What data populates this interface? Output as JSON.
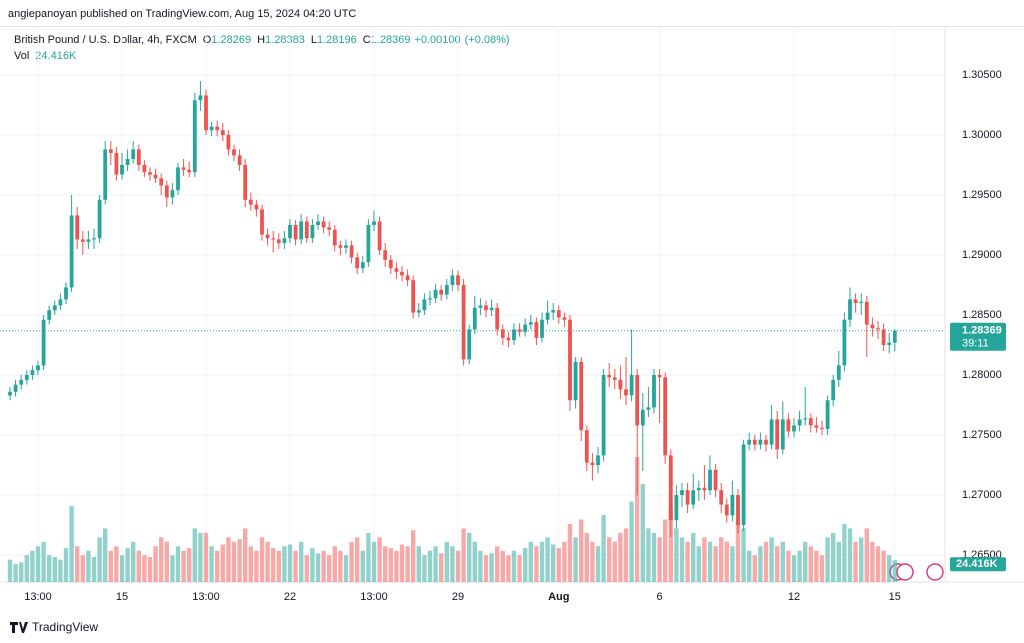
{
  "header": "angiepanoyan published on TradingView.com, Aug 15, 2024 04:20 UTC",
  "footer": "TradingView",
  "chart_data": {
    "type": "candlestick",
    "symbol": "British Pound / U.S. Dollar, 4h, FXCM",
    "ohlc_letters": [
      "O",
      "H",
      "L",
      "C"
    ],
    "change": {
      "value": 0.001,
      "label": "+0.00100"
    },
    "change_pct": {
      "value": 0.08,
      "label": "(+0.08%)"
    },
    "volume_title": "Vol",
    "last_volume_label": "24.416K",
    "countdown": "39:11",
    "up_color": "#26a69a",
    "down_color": "#ef5350",
    "grid": true,
    "ylim": [
      1.26275,
      1.30875
    ],
    "yticks": [
      {
        "value": 1.265,
        "label": "1.26500"
      },
      {
        "value": 1.27,
        "label": "1.27000"
      },
      {
        "value": 1.275,
        "label": "1.27500"
      },
      {
        "value": 1.28,
        "label": "1.28000"
      },
      {
        "value": 1.285,
        "label": "1.28500"
      },
      {
        "value": 1.29,
        "label": "1.29000"
      },
      {
        "value": 1.295,
        "label": "1.29500"
      },
      {
        "value": 1.3,
        "label": "1.30000"
      },
      {
        "value": 1.305,
        "label": "1.30500"
      }
    ],
    "xticks": [
      {
        "value": 5,
        "label": "13:00"
      },
      {
        "value": 20,
        "label": "15"
      },
      {
        "value": 35,
        "label": "13:00"
      },
      {
        "value": 50,
        "label": "22"
      },
      {
        "value": 65,
        "label": "13:00"
      },
      {
        "value": 80,
        "label": "29"
      },
      {
        "value": 98,
        "label": "Aug"
      },
      {
        "value": 116,
        "label": "6"
      },
      {
        "value": 140,
        "label": "12"
      },
      {
        "value": 158,
        "label": "15"
      }
    ],
    "ohlc": [
      [
        1.2783,
        1.279,
        1.2779,
        1.2786
      ],
      [
        1.2786,
        1.2796,
        1.2782,
        1.2792
      ],
      [
        1.2792,
        1.28,
        1.2788,
        1.2796
      ],
      [
        1.2796,
        1.2804,
        1.2792,
        1.28
      ],
      [
        1.28,
        1.2808,
        1.2796,
        1.2804
      ],
      [
        1.2804,
        1.2812,
        1.28,
        1.2808
      ],
      [
        1.2808,
        1.285,
        1.2804,
        1.2846
      ],
      [
        1.2846,
        1.2858,
        1.2842,
        1.2854
      ],
      [
        1.2854,
        1.2862,
        1.285,
        1.2858
      ],
      [
        1.2858,
        1.2868,
        1.2854,
        1.2863
      ],
      [
        1.2863,
        1.2877,
        1.2859,
        1.2873
      ],
      [
        1.2873,
        1.295,
        1.2869,
        1.2933
      ],
      [
        1.2933,
        1.294,
        1.2905,
        1.2913
      ],
      [
        1.2913,
        1.292,
        1.29,
        1.2911
      ],
      [
        1.2911,
        1.292,
        1.2905,
        1.2913
      ],
      [
        1.2913,
        1.2922,
        1.2905,
        1.2914
      ],
      [
        1.2914,
        1.295,
        1.291,
        1.2946
      ],
      [
        1.2946,
        1.2995,
        1.2942,
        1.2988
      ],
      [
        1.2988,
        1.2995,
        1.2975,
        1.2985
      ],
      [
        1.2985,
        1.299,
        1.2962,
        1.2967
      ],
      [
        1.2967,
        1.2985,
        1.2963,
        1.2975
      ],
      [
        1.2975,
        1.2988,
        1.297,
        1.298
      ],
      [
        1.298,
        1.2995,
        1.2976,
        1.2988
      ],
      [
        1.2988,
        1.2992,
        1.297,
        1.2975
      ],
      [
        1.2975,
        1.2979,
        1.2965,
        1.2969
      ],
      [
        1.2969,
        1.2973,
        1.2962,
        1.2967
      ],
      [
        1.2967,
        1.2972,
        1.296,
        1.2964
      ],
      [
        1.2964,
        1.2968,
        1.295,
        1.2958
      ],
      [
        1.2958,
        1.2962,
        1.294,
        1.2948
      ],
      [
        1.2948,
        1.296,
        1.2942,
        1.2954
      ],
      [
        1.2954,
        1.2977,
        1.295,
        1.2973
      ],
      [
        1.2973,
        1.298,
        1.2966,
        1.2971
      ],
      [
        1.2971,
        1.2978,
        1.2965,
        1.2969
      ],
      [
        1.2969,
        1.3035,
        1.2965,
        1.3029
      ],
      [
        1.3029,
        1.3045,
        1.302,
        1.3033
      ],
      [
        1.3033,
        1.3038,
        1.3,
        1.3004
      ],
      [
        1.3004,
        1.3011,
        1.2999,
        1.3007
      ],
      [
        1.3007,
        1.3012,
        1.2999,
        1.3004
      ],
      [
        1.3004,
        1.301,
        1.2995,
        1.3
      ],
      [
        1.3,
        1.3004,
        1.2983,
        1.2988
      ],
      [
        1.2988,
        1.2992,
        1.2978,
        1.2983
      ],
      [
        1.2983,
        1.2988,
        1.297,
        1.2975
      ],
      [
        1.2975,
        1.298,
        1.294,
        1.2946
      ],
      [
        1.2946,
        1.2952,
        1.2937,
        1.2942
      ],
      [
        1.2942,
        1.2946,
        1.2932,
        1.2938
      ],
      [
        1.2938,
        1.2942,
        1.2912,
        1.2917
      ],
      [
        1.2917,
        1.2922,
        1.2908,
        1.2914
      ],
      [
        1.2914,
        1.292,
        1.2902,
        1.2913
      ],
      [
        1.2913,
        1.2918,
        1.2905,
        1.291
      ],
      [
        1.291,
        1.292,
        1.2905,
        1.2914
      ],
      [
        1.2914,
        1.293,
        1.291,
        1.2925
      ],
      [
        1.2925,
        1.2929,
        1.2908,
        1.2913
      ],
      [
        1.2913,
        1.2934,
        1.2909,
        1.2928
      ],
      [
        1.2928,
        1.2932,
        1.291,
        1.2914
      ],
      [
        1.2914,
        1.293,
        1.291,
        1.2925
      ],
      [
        1.2925,
        1.2934,
        1.2921,
        1.2928
      ],
      [
        1.2928,
        1.2932,
        1.2918,
        1.2923
      ],
      [
        1.2923,
        1.2928,
        1.2916,
        1.2921
      ],
      [
        1.2921,
        1.2925,
        1.2903,
        1.2908
      ],
      [
        1.2908,
        1.2912,
        1.29,
        1.2906
      ],
      [
        1.2906,
        1.2913,
        1.2901,
        1.2908
      ],
      [
        1.2908,
        1.2912,
        1.2893,
        1.2898
      ],
      [
        1.2898,
        1.2902,
        1.2884,
        1.2889
      ],
      [
        1.2889,
        1.2899,
        1.2885,
        1.2894
      ],
      [
        1.2894,
        1.293,
        1.289,
        1.2925
      ],
      [
        1.2925,
        1.2937,
        1.292,
        1.2928
      ],
      [
        1.2928,
        1.2932,
        1.29,
        1.2904
      ],
      [
        1.2904,
        1.291,
        1.289,
        1.2896
      ],
      [
        1.2896,
        1.29,
        1.2884,
        1.2889
      ],
      [
        1.2889,
        1.2894,
        1.288,
        1.2886
      ],
      [
        1.2886,
        1.2891,
        1.2878,
        1.2883
      ],
      [
        1.2883,
        1.2888,
        1.2874,
        1.2879
      ],
      [
        1.2879,
        1.2883,
        1.2847,
        1.2852
      ],
      [
        1.2852,
        1.286,
        1.2848,
        1.2854
      ],
      [
        1.2854,
        1.2868,
        1.285,
        1.2863
      ],
      [
        1.2863,
        1.287,
        1.2858,
        1.2864
      ],
      [
        1.2864,
        1.2876,
        1.286,
        1.2871
      ],
      [
        1.2871,
        1.2875,
        1.2862,
        1.2867
      ],
      [
        1.2867,
        1.288,
        1.2863,
        1.2875
      ],
      [
        1.2875,
        1.2888,
        1.287,
        1.2883
      ],
      [
        1.2883,
        1.2887,
        1.287,
        1.2875
      ],
      [
        1.2875,
        1.288,
        1.2808,
        1.2813
      ],
      [
        1.2813,
        1.2842,
        1.2809,
        1.2838
      ],
      [
        1.2838,
        1.2866,
        1.2834,
        1.2856
      ],
      [
        1.2856,
        1.2864,
        1.285,
        1.2858
      ],
      [
        1.2858,
        1.2862,
        1.2848,
        1.2854
      ],
      [
        1.2854,
        1.2863,
        1.2849,
        1.2856
      ],
      [
        1.2856,
        1.286,
        1.2833,
        1.2838
      ],
      [
        1.2838,
        1.2842,
        1.2825,
        1.2831
      ],
      [
        1.2831,
        1.2836,
        1.2823,
        1.2829
      ],
      [
        1.2829,
        1.2843,
        1.2825,
        1.2838
      ],
      [
        1.2838,
        1.2843,
        1.2832,
        1.2836
      ],
      [
        1.2836,
        1.2847,
        1.2832,
        1.2842
      ],
      [
        1.2842,
        1.285,
        1.2838,
        1.2844
      ],
      [
        1.2844,
        1.2848,
        1.2825,
        1.2831
      ],
      [
        1.2831,
        1.2852,
        1.2827,
        1.2846
      ],
      [
        1.2846,
        1.2862,
        1.2842,
        1.2852
      ],
      [
        1.2852,
        1.286,
        1.2846,
        1.2854
      ],
      [
        1.2854,
        1.2858,
        1.2843,
        1.2848
      ],
      [
        1.2848,
        1.2852,
        1.284,
        1.2846
      ],
      [
        1.2846,
        1.285,
        1.277,
        1.2779
      ],
      [
        1.2779,
        1.2815,
        1.2772,
        1.2811
      ],
      [
        1.2811,
        1.2815,
        1.2745,
        1.2754
      ],
      [
        1.2754,
        1.2758,
        1.272,
        1.2727
      ],
      [
        1.2727,
        1.2735,
        1.2712,
        1.2725
      ],
      [
        1.2725,
        1.274,
        1.2718,
        1.2733
      ],
      [
        1.2733,
        1.2805,
        1.2728,
        1.28
      ],
      [
        1.28,
        1.281,
        1.279,
        1.2798
      ],
      [
        1.2798,
        1.2805,
        1.2788,
        1.2796
      ],
      [
        1.2796,
        1.2808,
        1.278,
        1.2788
      ],
      [
        1.2788,
        1.2815,
        1.2775,
        1.2783
      ],
      [
        1.2783,
        1.2838,
        1.2778,
        1.28
      ],
      [
        1.28,
        1.2805,
        1.27,
        1.2758
      ],
      [
        1.2758,
        1.2785,
        1.272,
        1.2771
      ],
      [
        1.2771,
        1.279,
        1.2765,
        1.2773
      ],
      [
        1.2773,
        1.2805,
        1.2768,
        1.28
      ],
      [
        1.28,
        1.2805,
        1.276,
        1.2798
      ],
      [
        1.2798,
        1.2802,
        1.2726,
        1.2733
      ],
      [
        1.2733,
        1.2738,
        1.2665,
        1.2679
      ],
      [
        1.2679,
        1.2708,
        1.2672,
        1.27
      ],
      [
        1.27,
        1.271,
        1.269,
        1.2704
      ],
      [
        1.2704,
        1.271,
        1.2685,
        1.2692
      ],
      [
        1.2692,
        1.2718,
        1.2688,
        1.2704
      ],
      [
        1.2704,
        1.2712,
        1.2695,
        1.2706
      ],
      [
        1.2706,
        1.2725,
        1.2696,
        1.2704
      ],
      [
        1.2704,
        1.2733,
        1.27,
        1.2721
      ],
      [
        1.2721,
        1.2726,
        1.2698,
        1.2704
      ],
      [
        1.2704,
        1.271,
        1.2685,
        1.2692
      ],
      [
        1.2692,
        1.2697,
        1.2677,
        1.2683
      ],
      [
        1.2683,
        1.2712,
        1.2678,
        1.27
      ],
      [
        1.27,
        1.2705,
        1.2668,
        1.2675
      ],
      [
        1.2675,
        1.2746,
        1.267,
        1.2742
      ],
      [
        1.2742,
        1.2752,
        1.2737,
        1.2746
      ],
      [
        1.2746,
        1.275,
        1.2737,
        1.2742
      ],
      [
        1.2742,
        1.2752,
        1.2738,
        1.2746
      ],
      [
        1.2746,
        1.275,
        1.2736,
        1.2742
      ],
      [
        1.2742,
        1.2775,
        1.2738,
        1.2763
      ],
      [
        1.2763,
        1.277,
        1.273,
        1.2738
      ],
      [
        1.2738,
        1.2778,
        1.2734,
        1.2763
      ],
      [
        1.2763,
        1.2768,
        1.2748,
        1.2753
      ],
      [
        1.2753,
        1.2764,
        1.2748,
        1.2758
      ],
      [
        1.2758,
        1.277,
        1.2753,
        1.2763
      ],
      [
        1.2763,
        1.279,
        1.2758,
        1.2764
      ],
      [
        1.2764,
        1.2768,
        1.2752,
        1.2758
      ],
      [
        1.2758,
        1.2765,
        1.2752,
        1.2756
      ],
      [
        1.2756,
        1.2762,
        1.275,
        1.2755
      ],
      [
        1.2755,
        1.2783,
        1.275,
        1.2779
      ],
      [
        1.2779,
        1.28,
        1.2774,
        1.2796
      ],
      [
        1.2796,
        1.282,
        1.279,
        1.2808
      ],
      [
        1.2808,
        1.2852,
        1.2803,
        1.2846
      ],
      [
        1.2846,
        1.2873,
        1.284,
        1.2863
      ],
      [
        1.2863,
        1.2868,
        1.2852,
        1.286
      ],
      [
        1.286,
        1.2868,
        1.285,
        1.2861
      ],
      [
        1.2861,
        1.2866,
        1.2815,
        1.2842
      ],
      [
        1.2842,
        1.2848,
        1.2832,
        1.2839
      ],
      [
        1.2839,
        1.2845,
        1.283,
        1.2838
      ],
      [
        1.2838,
        1.2843,
        1.282,
        1.2825
      ],
      [
        1.2825,
        1.2835,
        1.2818,
        1.28269
      ],
      [
        1.28269,
        1.28383,
        1.28196,
        1.28369
      ]
    ],
    "volume": [
      25,
      20,
      22,
      30,
      35,
      40,
      45,
      30,
      28,
      25,
      38,
      85,
      40,
      30,
      35,
      28,
      50,
      60,
      35,
      40,
      30,
      38,
      45,
      35,
      30,
      28,
      40,
      50,
      45,
      30,
      40,
      35,
      38,
      60,
      55,
      55,
      40,
      35,
      42,
      50,
      45,
      48,
      60,
      40,
      35,
      50,
      45,
      38,
      35,
      40,
      42,
      35,
      45,
      30,
      38,
      32,
      35,
      30,
      40,
      35,
      30,
      45,
      50,
      35,
      55,
      45,
      50,
      40,
      38,
      35,
      42,
      40,
      58,
      40,
      30,
      35,
      40,
      32,
      45,
      40,
      35,
      60,
      55,
      45,
      35,
      30,
      32,
      40,
      35,
      30,
      35,
      30,
      38,
      45,
      40,
      45,
      50,
      42,
      38,
      45,
      65,
      50,
      70,
      55,
      45,
      40,
      75,
      50,
      45,
      55,
      60,
      90,
      140,
      110,
      60,
      55,
      50,
      70,
      85,
      60,
      50,
      45,
      55,
      40,
      50,
      45,
      40,
      50,
      45,
      40,
      70,
      60,
      35,
      30,
      40,
      45,
      50,
      40,
      45,
      35,
      30,
      35,
      45,
      40,
      35,
      30,
      50,
      55,
      45,
      65,
      60,
      45,
      50,
      60,
      45,
      40,
      35,
      30,
      24.416
    ]
  }
}
